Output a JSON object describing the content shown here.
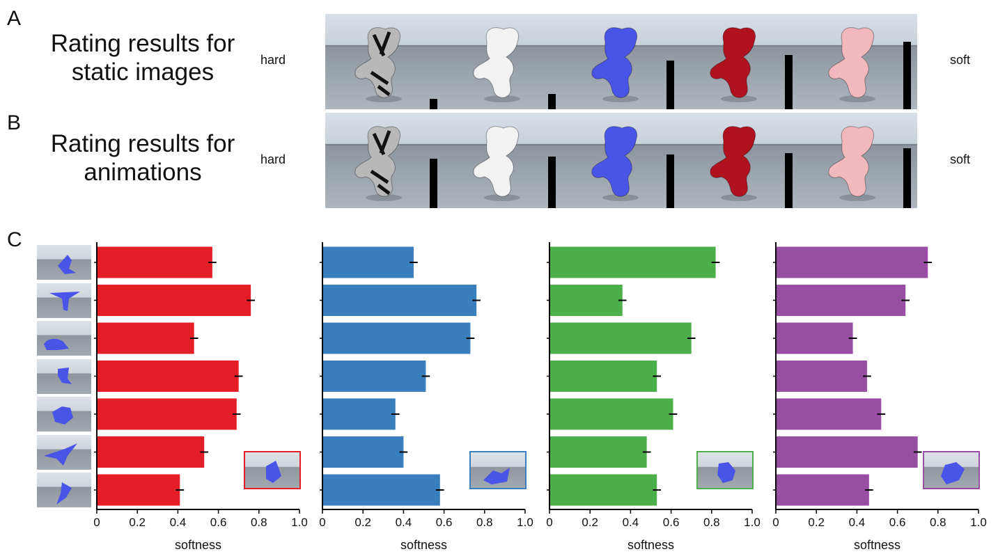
{
  "panels": {
    "a": {
      "letter": "A",
      "title_line1": "Rating results for",
      "title_line2": "static images",
      "hard_label": "hard",
      "soft_label": "soft"
    },
    "b": {
      "letter": "B",
      "title_line1": "Rating results for",
      "title_line2": "animations",
      "hard_label": "hard",
      "soft_label": "soft"
    },
    "c": {
      "letter": "C"
    }
  },
  "materials": [
    {
      "name_icon": "chrome-object-image",
      "color": "#b8b8b8"
    },
    {
      "name_icon": "white-object-image",
      "color": "#f2f2f2"
    },
    {
      "name_icon": "blue-object-image",
      "color": "#4a55e8"
    },
    {
      "name_icon": "red-object-image",
      "color": "#b0121f"
    },
    {
      "name_icon": "pink-object-image",
      "color": "#f1b8bd"
    }
  ],
  "chart_data": [
    {
      "type": "bar",
      "panel": "A",
      "categories": [
        "chrome",
        "white",
        "blue",
        "red",
        "pink"
      ],
      "values": [
        0.11,
        0.16,
        0.51,
        0.57,
        0.71
      ]
    },
    {
      "type": "bar",
      "panel": "B",
      "categories": [
        "chrome",
        "white",
        "blue",
        "red",
        "pink"
      ],
      "values": [
        0.52,
        0.54,
        0.56,
        0.58,
        0.63
      ]
    },
    {
      "type": "bar",
      "panel": "C",
      "orientation": "horizontal",
      "xlabel": "softness",
      "xlim": [
        0,
        1.0
      ],
      "xticks": [
        "0",
        "0.2",
        "0.4",
        "0.6",
        "0.8",
        "1.0"
      ],
      "series": [
        {
          "color": "#e41e26",
          "values": [
            0.57,
            0.76,
            0.48,
            0.7,
            0.69,
            0.53,
            0.41
          ],
          "errors": [
            0.02,
            0.02,
            0.02,
            0.02,
            0.02,
            0.02,
            0.02
          ]
        },
        {
          "color": "#3a7fbd",
          "values": [
            0.45,
            0.76,
            0.73,
            0.51,
            0.36,
            0.4,
            0.58
          ],
          "errors": [
            0.02,
            0.02,
            0.02,
            0.02,
            0.02,
            0.02,
            0.02
          ]
        },
        {
          "color": "#4daf4a",
          "values": [
            0.82,
            0.36,
            0.7,
            0.53,
            0.61,
            0.48,
            0.53
          ],
          "errors": [
            0.02,
            0.02,
            0.02,
            0.02,
            0.02,
            0.02,
            0.02
          ]
        },
        {
          "color": "#984ea3",
          "values": [
            0.75,
            0.64,
            0.38,
            0.45,
            0.52,
            0.7,
            0.46
          ],
          "errors": [
            0.02,
            0.02,
            0.02,
            0.02,
            0.02,
            0.02,
            0.02
          ]
        }
      ]
    }
  ]
}
